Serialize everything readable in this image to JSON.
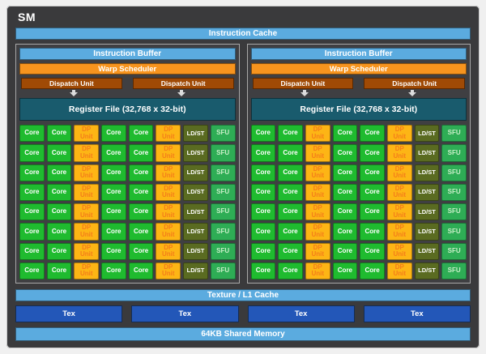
{
  "title": "SM",
  "colors": {
    "light_blue": "#5BABDF",
    "orange": "#F7941E",
    "dark_orange": "#A04A05",
    "teal": "#195B6D",
    "core_green": "#1FBB2F",
    "dp_amber": "#FDB515",
    "dp_text": "#F47D1A",
    "ldst_olive": "#5A6B21",
    "sfu_green": "#2EAD55",
    "sfu_text": "#C9EFC9",
    "tex_blue": "#2357B8"
  },
  "instruction_cache": "Instruction Cache",
  "processing_blocks": {
    "count": 2,
    "instruction_buffer": "Instruction Buffer",
    "warp_scheduler": "Warp Scheduler",
    "dispatch_units": [
      "Dispatch Unit",
      "Dispatch Unit"
    ],
    "register_file": "Register File (32,768 x 32-bit)",
    "core_grid": {
      "rows": 8,
      "column_labels": [
        "Core",
        "Core",
        "DP Unit",
        "Core",
        "Core",
        "DP Unit",
        "LD/ST",
        "SFU"
      ],
      "column_types": [
        "core",
        "core",
        "dp",
        "core",
        "core",
        "dp",
        "ldst",
        "sfu"
      ]
    }
  },
  "texture_l1_cache": "Texture / L1 Cache",
  "tex_units": [
    "Tex",
    "Tex",
    "Tex",
    "Tex"
  ],
  "shared_memory": "64KB Shared Memory"
}
